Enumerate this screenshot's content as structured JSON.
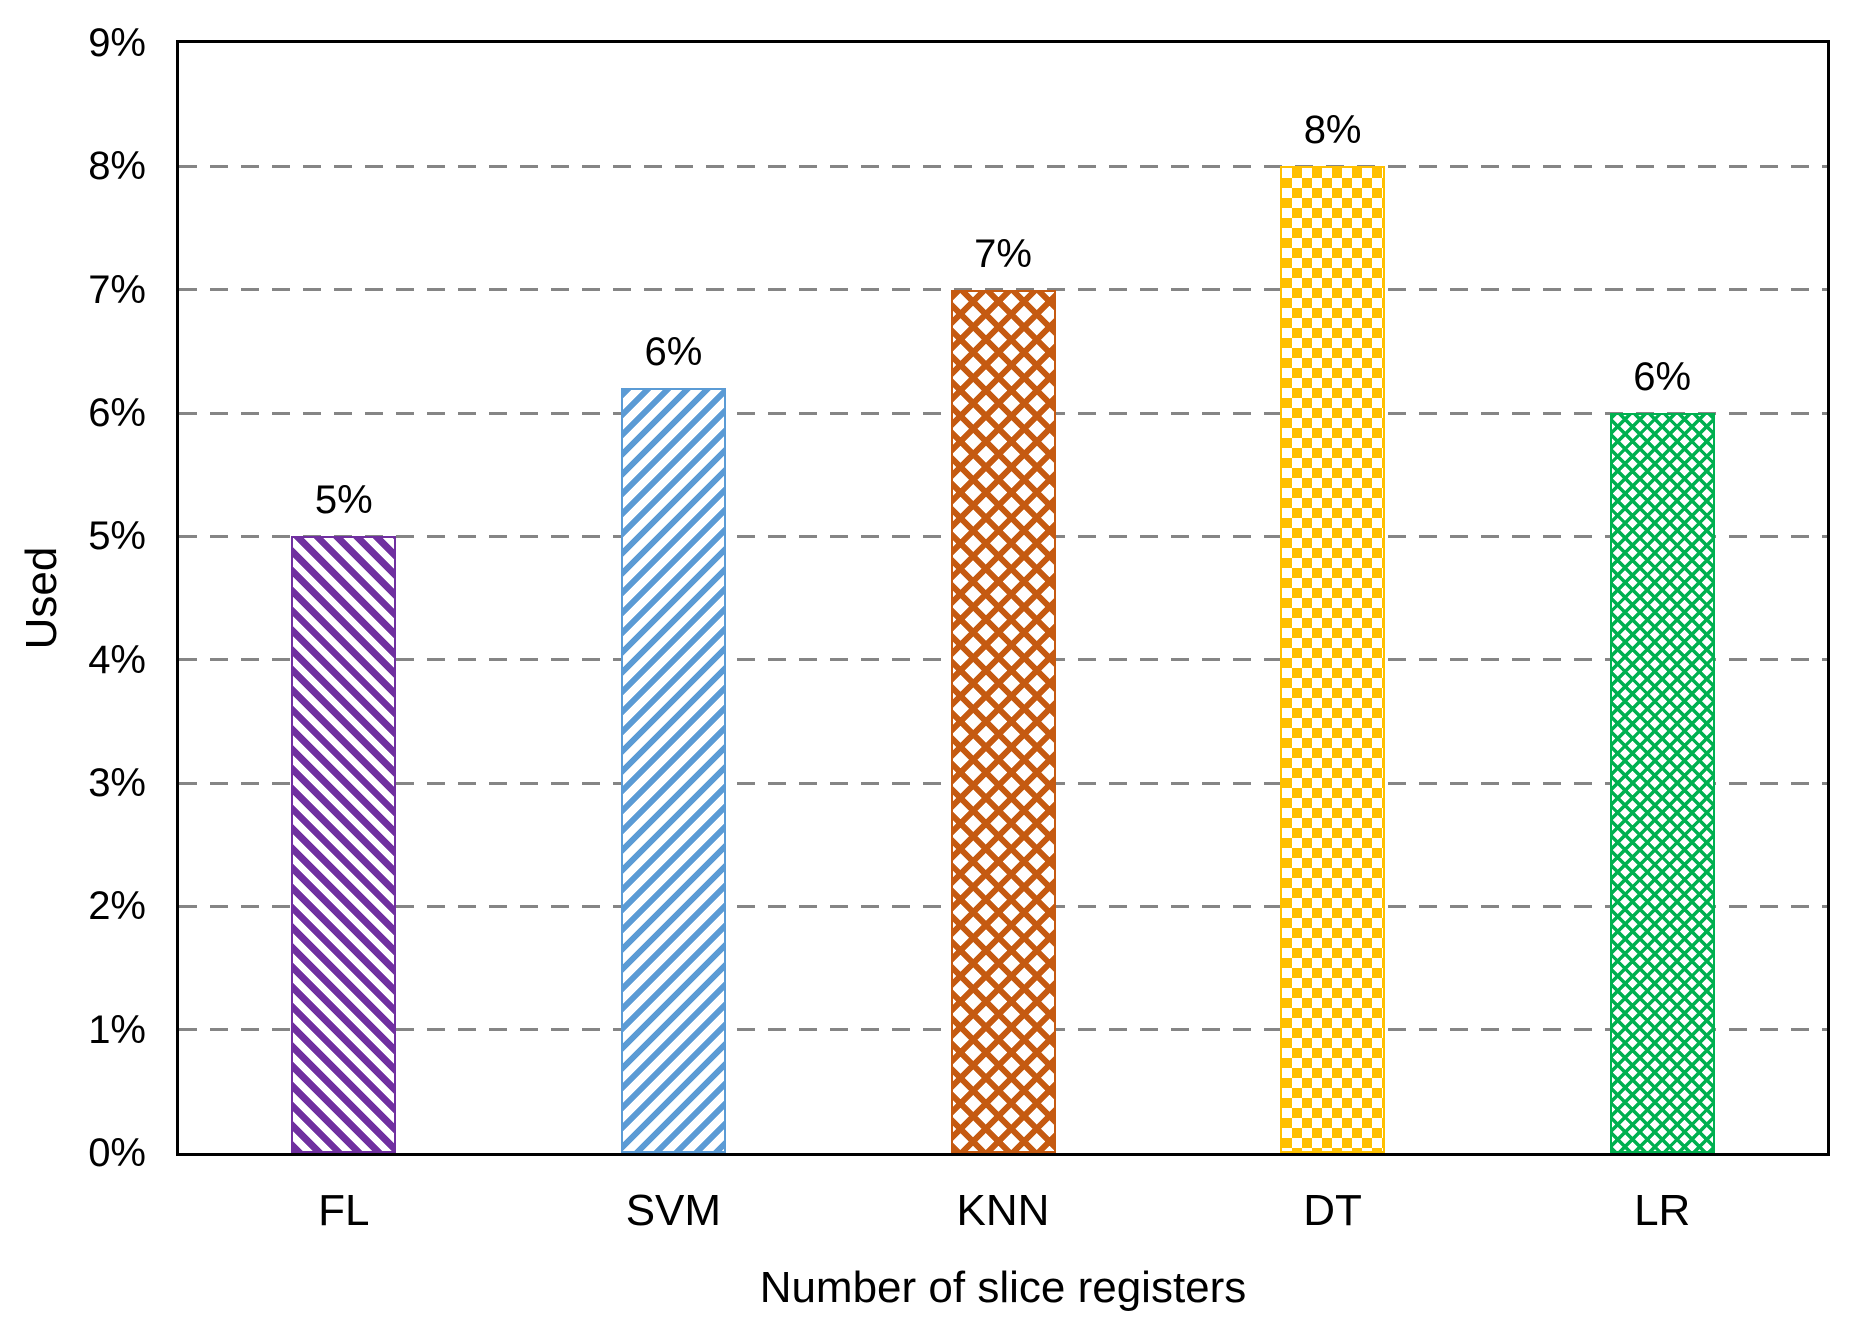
{
  "chart_data": {
    "type": "bar",
    "title": "",
    "xlabel": "Number of slice registers",
    "ylabel": "Used",
    "ylim": [
      0,
      9
    ],
    "y_tick_labels": [
      "0%",
      "1%",
      "2%",
      "3%",
      "4%",
      "5%",
      "6%",
      "7%",
      "8%",
      "9%"
    ],
    "grid": "horizontal dashed gray lines at 1% through 8%",
    "legend": "none",
    "categories": [
      "FL",
      "SVM",
      "KNN",
      "DT",
      "LR"
    ],
    "values": [
      5,
      6.2,
      7,
      8,
      6
    ],
    "data_labels": [
      "5%",
      "6%",
      "7%",
      "8%",
      "6%"
    ],
    "bars": [
      {
        "category": "FL",
        "value": 5,
        "label": "5%",
        "pattern": "stripe-down",
        "color": "#7030A0"
      },
      {
        "category": "SVM",
        "value": 6.2,
        "label": "6%",
        "pattern": "stripe-up",
        "color": "#5B9BD5"
      },
      {
        "category": "KNN",
        "value": 7,
        "label": "7%",
        "pattern": "trellis",
        "color": "#C55A11"
      },
      {
        "category": "DT",
        "value": 8,
        "label": "8%",
        "pattern": "checker",
        "color": "#FFC000"
      },
      {
        "category": "LR",
        "value": 6,
        "label": "6%",
        "pattern": "crosshatch",
        "color": "#00B050"
      }
    ],
    "colors": {
      "frame": "#000000",
      "gridline": "#858585",
      "text": "#000000"
    }
  }
}
